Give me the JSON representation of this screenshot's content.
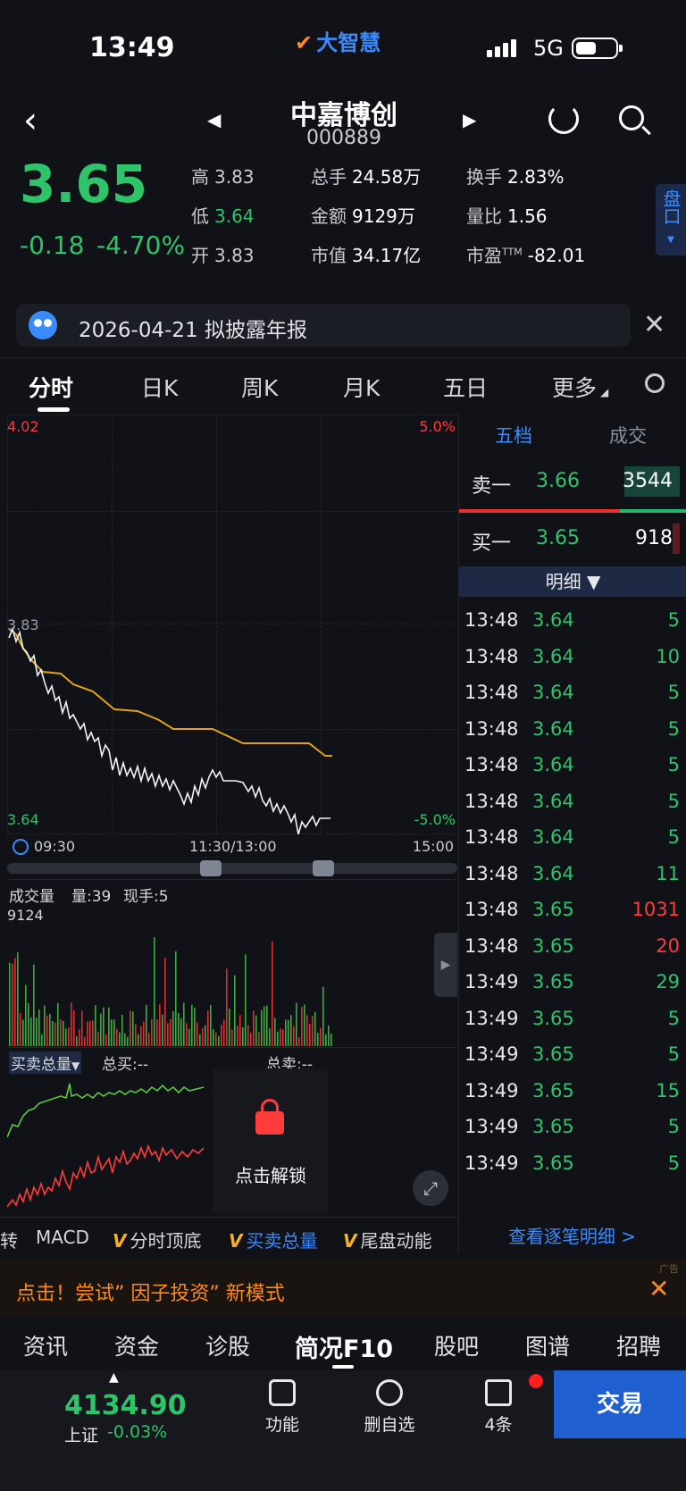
{
  "status_bar": {
    "time": "13:49",
    "app_logo": "大智慧",
    "network": "5G"
  },
  "header": {
    "stock_name": "中嘉博创",
    "stock_code": "000889"
  },
  "quote": {
    "price": "3.65",
    "change": "-0.18",
    "change_pct": "-4.70%",
    "fields": [
      {
        "label": "高",
        "value": "3.83",
        "color": "#c9ccd2"
      },
      {
        "label": "总手",
        "value": "24.58万"
      },
      {
        "label": "换手",
        "value": "2.83%"
      },
      {
        "label": "低",
        "value": "3.64",
        "color": "#2fc36a"
      },
      {
        "label": "金额",
        "value": "9129万"
      },
      {
        "label": "量比",
        "value": "1.56"
      },
      {
        "label": "开",
        "value": "3.83",
        "color": "#c9ccd2"
      },
      {
        "label": "市值",
        "value": "34.17亿"
      },
      {
        "label": "市盈",
        "value": "-82.01",
        "sup": "TTM"
      }
    ],
    "pankou_label": "盘口"
  },
  "notice": {
    "text": "2026-04-21 拟披露年报"
  },
  "tabs": [
    "分时",
    "日K",
    "周K",
    "月K",
    "五日",
    "更多"
  ],
  "chart": {
    "top_left": "4.02",
    "top_right": "5.0%",
    "mid_left": "3.83",
    "bottom_left": "3.64",
    "bottom_right": "-5.0%",
    "time_start": "09:30",
    "time_mid": "11:30/13:00",
    "time_end": "15:00",
    "vol_title": "成交量",
    "vol_info": "量:39",
    "vol_now": "现手:5",
    "vol_max": "9124",
    "buysell_title": "买卖总量",
    "total_buy": "总买:--",
    "total_sell": "总卖:--",
    "unlock": "点击解锁"
  },
  "indicators": [
    "转",
    "MACD",
    "分时顶底",
    "买卖总量",
    "尾盘动能"
  ],
  "right_panel": {
    "tab_wudang": "五档",
    "tab_chengjiao": "成交",
    "sell1": {
      "label": "卖一",
      "price": "3.66",
      "vol": "3544"
    },
    "buy1": {
      "label": "买一",
      "price": "3.65",
      "vol": "918"
    },
    "mingxi": "明细",
    "trades": [
      {
        "t": "13:48",
        "p": "3.64",
        "n": "5",
        "c": "#2fc36a"
      },
      {
        "t": "13:48",
        "p": "3.64",
        "n": "10",
        "c": "#2fc36a"
      },
      {
        "t": "13:48",
        "p": "3.64",
        "n": "5",
        "c": "#2fc36a"
      },
      {
        "t": "13:48",
        "p": "3.64",
        "n": "5",
        "c": "#2fc36a"
      },
      {
        "t": "13:48",
        "p": "3.64",
        "n": "5",
        "c": "#2fc36a"
      },
      {
        "t": "13:48",
        "p": "3.64",
        "n": "5",
        "c": "#2fc36a"
      },
      {
        "t": "13:48",
        "p": "3.64",
        "n": "5",
        "c": "#2fc36a"
      },
      {
        "t": "13:48",
        "p": "3.64",
        "n": "11",
        "c": "#2fc36a"
      },
      {
        "t": "13:48",
        "p": "3.65",
        "n": "1031",
        "c": "#ff3b3b"
      },
      {
        "t": "13:48",
        "p": "3.65",
        "n": "20",
        "c": "#ff3b3b"
      },
      {
        "t": "13:49",
        "p": "3.65",
        "n": "29",
        "c": "#2fc36a"
      },
      {
        "t": "13:49",
        "p": "3.65",
        "n": "5",
        "c": "#2fc36a"
      },
      {
        "t": "13:49",
        "p": "3.65",
        "n": "5",
        "c": "#2fc36a"
      },
      {
        "t": "13:49",
        "p": "3.65",
        "n": "15",
        "c": "#2fc36a"
      },
      {
        "t": "13:49",
        "p": "3.65",
        "n": "5",
        "c": "#2fc36a"
      },
      {
        "t": "13:49",
        "p": "3.65",
        "n": "5",
        "c": "#2fc36a"
      }
    ],
    "view_all": "查看逐笔明细 >"
  },
  "promo": {
    "text": "点击！尝试” 因子投资” 新模式",
    "ad": "广告"
  },
  "f10_tabs": [
    "资讯",
    "资金",
    "诊股",
    "简况F10",
    "股吧",
    "图谱",
    "招聘"
  ],
  "bottom": {
    "index_value": "4134.90",
    "index_name": "上证",
    "index_change": "-0.03%",
    "btn_func": "功能",
    "btn_remove": "删自选",
    "btn_count": "4条",
    "btn_trade": "交易"
  },
  "colors": {
    "up": "#ff3b3b",
    "down": "#2fc36a",
    "accent": "#3b8bff",
    "avg_line": "#e0a21b"
  }
}
